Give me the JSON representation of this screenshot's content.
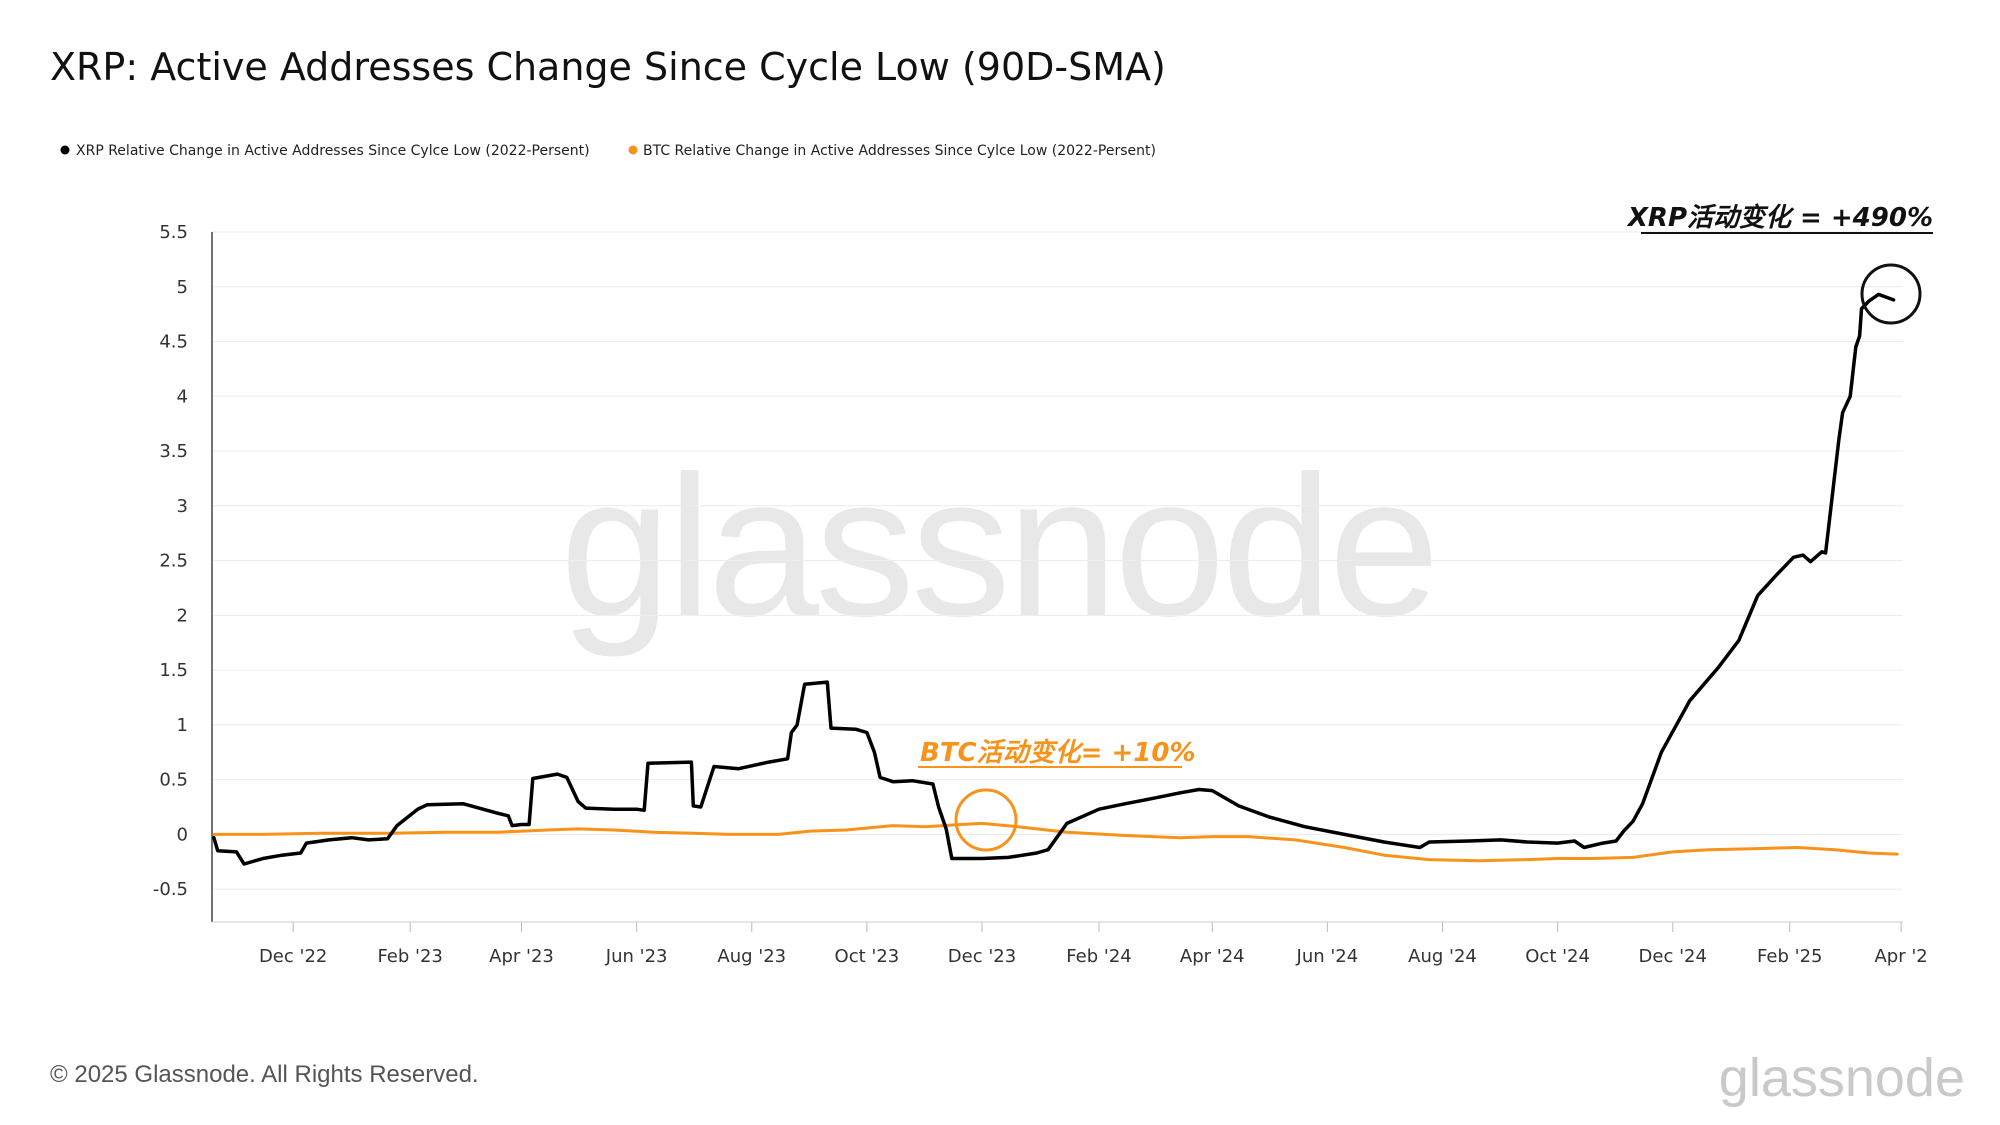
{
  "chart_data": {
    "type": "line",
    "title": "XRP: Active Addresses Change Since Cycle Low (90D-SMA)",
    "legend": {
      "placement": "top-left"
    },
    "y_ticks": [
      "5.5",
      "5",
      "4.5",
      "4",
      "3.5",
      "3",
      "2.5",
      "2",
      "1.5",
      "1",
      "0.5",
      "0",
      "-0.5"
    ],
    "ylim": [
      -0.8,
      5.5
    ],
    "x_ticks": [
      "Dec '22",
      "Feb '23",
      "Apr '23",
      "Jun '23",
      "Aug '23",
      "Oct '23",
      "Dec '23",
      "Feb '24",
      "Apr '24",
      "Jun '24",
      "Aug '24",
      "Oct '24",
      "Dec '24",
      "Feb '25",
      "Apr '2"
    ],
    "x_tick_dates": [
      "2022-12-01",
      "2023-02-01",
      "2023-04-01",
      "2023-06-01",
      "2023-08-01",
      "2023-10-01",
      "2023-12-01",
      "2024-02-01",
      "2024-04-01",
      "2024-06-01",
      "2024-08-01",
      "2024-10-01",
      "2024-12-01",
      "2025-02-01",
      "2025-04-01"
    ],
    "xlim": [
      "2022-10-19",
      "2025-04-02"
    ],
    "grid": "horizontal",
    "series": [
      {
        "name": "XRP Relative Change in Active Addresses Since Cylce Low (2022-Persent)",
        "color": "#000000",
        "points": [
          [
            "2022-10-20",
            -0.03
          ],
          [
            "2022-10-22",
            -0.15
          ],
          [
            "2022-11-01",
            -0.16
          ],
          [
            "2022-11-05",
            -0.27
          ],
          [
            "2022-11-15",
            -0.22
          ],
          [
            "2022-11-25",
            -0.19
          ],
          [
            "2022-12-05",
            -0.17
          ],
          [
            "2022-12-08",
            -0.08
          ],
          [
            "2022-12-20",
            -0.05
          ],
          [
            "2023-01-01",
            -0.03
          ],
          [
            "2023-01-10",
            -0.05
          ],
          [
            "2023-01-20",
            -0.04
          ],
          [
            "2023-01-25",
            0.08
          ],
          [
            "2023-02-05",
            0.23
          ],
          [
            "2023-02-10",
            0.27
          ],
          [
            "2023-03-01",
            0.28
          ],
          [
            "2023-03-20",
            0.19
          ],
          [
            "2023-03-25",
            0.17
          ],
          [
            "2023-03-27",
            0.08
          ],
          [
            "2023-04-01",
            0.09
          ],
          [
            "2023-04-05",
            0.09
          ],
          [
            "2023-04-07",
            0.51
          ],
          [
            "2023-04-20",
            0.55
          ],
          [
            "2023-04-25",
            0.52
          ],
          [
            "2023-05-01",
            0.3
          ],
          [
            "2023-05-05",
            0.24
          ],
          [
            "2023-05-20",
            0.23
          ],
          [
            "2023-06-01",
            0.23
          ],
          [
            "2023-06-05",
            0.22
          ],
          [
            "2023-06-07",
            0.65
          ],
          [
            "2023-06-30",
            0.66
          ],
          [
            "2023-07-01",
            0.26
          ],
          [
            "2023-07-05",
            0.25
          ],
          [
            "2023-07-12",
            0.62
          ],
          [
            "2023-07-25",
            0.6
          ],
          [
            "2023-08-10",
            0.66
          ],
          [
            "2023-08-20",
            0.69
          ],
          [
            "2023-08-22",
            0.93
          ],
          [
            "2023-08-25",
            1.0
          ],
          [
            "2023-08-29",
            1.37
          ],
          [
            "2023-09-10",
            1.39
          ],
          [
            "2023-09-12",
            0.97
          ],
          [
            "2023-09-25",
            0.96
          ],
          [
            "2023-10-01",
            0.93
          ],
          [
            "2023-10-05",
            0.75
          ],
          [
            "2023-10-08",
            0.52
          ],
          [
            "2023-10-15",
            0.48
          ],
          [
            "2023-10-25",
            0.49
          ],
          [
            "2023-11-05",
            0.46
          ],
          [
            "2023-11-08",
            0.25
          ],
          [
            "2023-11-12",
            0.05
          ],
          [
            "2023-11-15",
            -0.22
          ],
          [
            "2023-12-01",
            -0.22
          ],
          [
            "2023-12-15",
            -0.21
          ],
          [
            "2023-12-30",
            -0.17
          ],
          [
            "2024-01-05",
            -0.14
          ],
          [
            "2024-01-15",
            0.1
          ],
          [
            "2024-02-01",
            0.23
          ],
          [
            "2024-02-15",
            0.28
          ],
          [
            "2024-03-01",
            0.33
          ],
          [
            "2024-03-15",
            0.38
          ],
          [
            "2024-03-25",
            0.41
          ],
          [
            "2024-04-01",
            0.4
          ],
          [
            "2024-04-15",
            0.26
          ],
          [
            "2024-05-01",
            0.16
          ],
          [
            "2024-05-20",
            0.07
          ],
          [
            "2024-06-10",
            0.0
          ],
          [
            "2024-07-01",
            -0.07
          ],
          [
            "2024-07-20",
            -0.12
          ],
          [
            "2024-07-25",
            -0.07
          ],
          [
            "2024-08-15",
            -0.06
          ],
          [
            "2024-09-01",
            -0.05
          ],
          [
            "2024-09-15",
            -0.07
          ],
          [
            "2024-10-01",
            -0.08
          ],
          [
            "2024-10-10",
            -0.06
          ],
          [
            "2024-10-15",
            -0.12
          ],
          [
            "2024-10-25",
            -0.08
          ],
          [
            "2024-11-01",
            -0.06
          ],
          [
            "2024-11-05",
            0.03
          ],
          [
            "2024-11-10",
            0.12
          ],
          [
            "2024-11-15",
            0.28
          ],
          [
            "2024-11-25",
            0.75
          ],
          [
            "2024-12-10",
            1.22
          ],
          [
            "2024-12-25",
            1.52
          ],
          [
            "2025-01-05",
            1.77
          ],
          [
            "2025-01-15",
            2.18
          ],
          [
            "2025-01-25",
            2.37
          ],
          [
            "2025-02-03",
            2.53
          ],
          [
            "2025-02-08",
            2.55
          ],
          [
            "2025-02-12",
            2.49
          ],
          [
            "2025-02-18",
            2.58
          ],
          [
            "2025-02-20",
            2.57
          ],
          [
            "2025-02-27",
            3.6
          ],
          [
            "2025-03-01",
            3.85
          ],
          [
            "2025-03-05",
            4.0
          ],
          [
            "2025-03-08",
            4.45
          ],
          [
            "2025-03-10",
            4.55
          ],
          [
            "2025-03-11",
            4.8
          ],
          [
            "2025-03-15",
            4.87
          ],
          [
            "2025-03-20",
            4.93
          ],
          [
            "2025-03-28",
            4.88
          ]
        ]
      },
      {
        "name": "BTC Relative Change in Active Addresses Since Cylce Low (2022-Persent)",
        "color": "#f7931a",
        "points": [
          [
            "2022-10-20",
            0.0
          ],
          [
            "2022-11-15",
            0.0
          ],
          [
            "2022-12-15",
            0.01
          ],
          [
            "2023-01-20",
            0.01
          ],
          [
            "2023-02-20",
            0.02
          ],
          [
            "2023-03-20",
            0.02
          ],
          [
            "2023-04-15",
            0.04
          ],
          [
            "2023-05-01",
            0.05
          ],
          [
            "2023-05-20",
            0.04
          ],
          [
            "2023-06-10",
            0.02
          ],
          [
            "2023-07-01",
            0.01
          ],
          [
            "2023-07-20",
            0.0
          ],
          [
            "2023-08-15",
            0.0
          ],
          [
            "2023-09-01",
            0.03
          ],
          [
            "2023-09-20",
            0.04
          ],
          [
            "2023-10-15",
            0.08
          ],
          [
            "2023-11-01",
            0.07
          ],
          [
            "2023-11-20",
            0.09
          ],
          [
            "2023-12-01",
            0.1
          ],
          [
            "2023-12-20",
            0.07
          ],
          [
            "2024-01-15",
            0.02
          ],
          [
            "2024-02-15",
            -0.01
          ],
          [
            "2024-03-15",
            -0.03
          ],
          [
            "2024-04-01",
            -0.02
          ],
          [
            "2024-04-20",
            -0.02
          ],
          [
            "2024-05-15",
            -0.05
          ],
          [
            "2024-06-10",
            -0.12
          ],
          [
            "2024-07-01",
            -0.19
          ],
          [
            "2024-07-25",
            -0.23
          ],
          [
            "2024-08-20",
            -0.24
          ],
          [
            "2024-09-15",
            -0.23
          ],
          [
            "2024-10-01",
            -0.22
          ],
          [
            "2024-10-20",
            -0.22
          ],
          [
            "2024-11-10",
            -0.21
          ],
          [
            "2024-12-01",
            -0.16
          ],
          [
            "2024-12-20",
            -0.14
          ],
          [
            "2025-01-15",
            -0.13
          ],
          [
            "2025-02-05",
            -0.12
          ],
          [
            "2025-02-25",
            -0.14
          ],
          [
            "2025-03-15",
            -0.17
          ],
          [
            "2025-03-30",
            -0.18
          ]
        ]
      }
    ],
    "annotations": {
      "xrp_label": "XRP活动变化 = +490%",
      "btc_label": "BTC活动变化= +10%"
    }
  },
  "watermark": "glassnode",
  "footer": {
    "copyright": "© 2025 Glassnode. All Rights Reserved.",
    "logo_text": "glassnode"
  }
}
